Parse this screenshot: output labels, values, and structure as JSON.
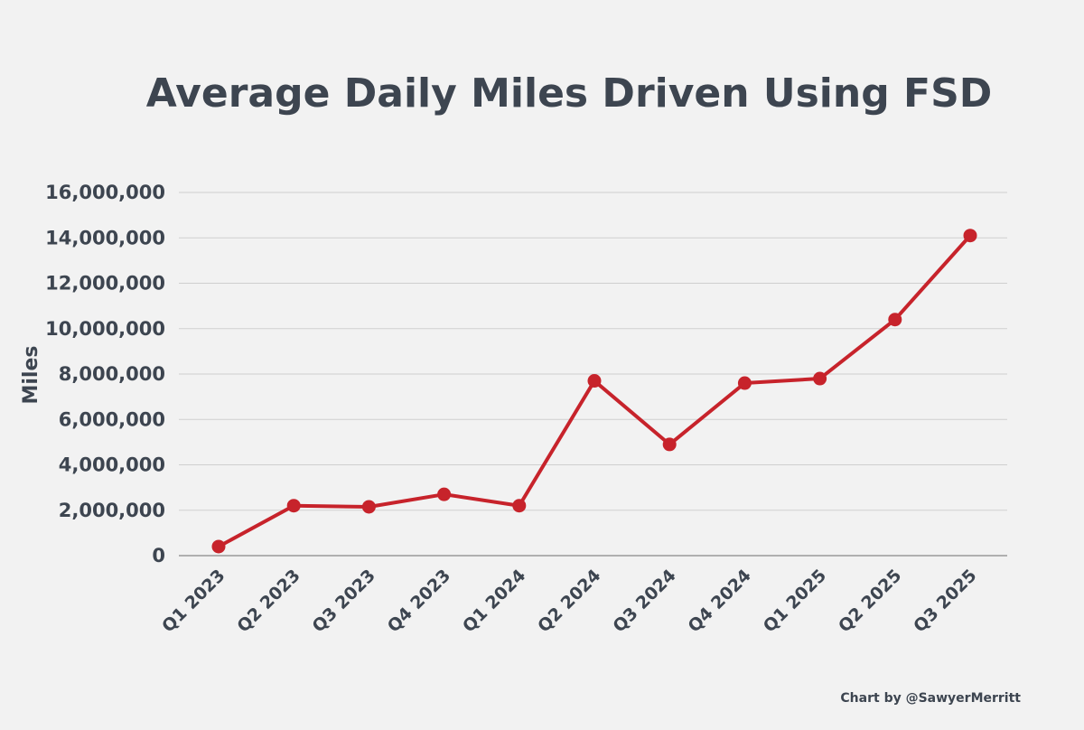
{
  "chart_data": {
    "type": "line",
    "title": "Average Daily Miles Driven Using FSD",
    "xlabel": "",
    "ylabel": "Miles",
    "categories": [
      "Q1 2023",
      "Q2 2023",
      "Q3 2023",
      "Q4 2023",
      "Q1 2024",
      "Q2 2024",
      "Q3 2024",
      "Q4 2024",
      "Q1 2025",
      "Q2 2025",
      "Q3 2025"
    ],
    "values": [
      400000,
      2200000,
      2150000,
      2700000,
      2200000,
      7700000,
      4900000,
      7600000,
      7800000,
      10400000,
      14100000
    ],
    "yticks": [
      "0",
      "2,000,000",
      "4,000,000",
      "6,000,000",
      "8,000,000",
      "10,000,000",
      "12,000,000",
      "14,000,000",
      "16,000,000"
    ],
    "ylim": [
      0,
      16000000
    ],
    "grid": true,
    "line_color": "#c7232b"
  },
  "footer": {
    "credit": "Chart by @SawyerMerritt"
  }
}
